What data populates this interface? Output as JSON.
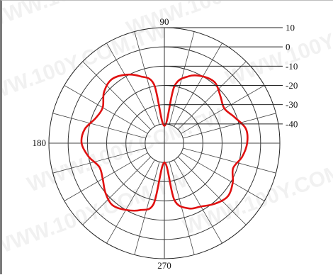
{
  "chart_data": {
    "type": "polar",
    "title": "",
    "angle_labels": [
      {
        "deg": 90,
        "text": "90"
      },
      {
        "deg": 180,
        "text": "180"
      },
      {
        "deg": 270,
        "text": "270"
      }
    ],
    "radial_scale": {
      "unit": "dB",
      "range": [
        -50,
        10
      ],
      "rings": [
        10,
        0,
        -10,
        -20,
        -30,
        -40
      ],
      "ring_labels": [
        "10",
        "0",
        "-10",
        "-20",
        "-30",
        "-40"
      ]
    },
    "angular_grid_step_deg": 15,
    "series": [
      {
        "color": "#e01010",
        "points": [
          {
            "angle": 90,
            "value": -41
          },
          {
            "angle": 80,
            "value": -20
          },
          {
            "angle": 70,
            "value": -13
          },
          {
            "angle": 60,
            "value": -10
          },
          {
            "angle": 50,
            "value": -9
          },
          {
            "angle": 40,
            "value": -12
          },
          {
            "angle": 30,
            "value": -14
          },
          {
            "angle": 20,
            "value": -11
          },
          {
            "angle": 10,
            "value": -7
          },
          {
            "angle": 0,
            "value": -7
          },
          {
            "angle": -10,
            "value": -9
          },
          {
            "angle": -20,
            "value": -12
          },
          {
            "angle": -30,
            "value": -9
          },
          {
            "angle": -40,
            "value": -7
          },
          {
            "angle": -50,
            "value": -9
          },
          {
            "angle": -60,
            "value": -12
          },
          {
            "angle": -70,
            "value": -14
          },
          {
            "angle": -80,
            "value": -20
          },
          {
            "angle": -90,
            "value": -40
          },
          {
            "angle": -100,
            "value": -18
          },
          {
            "angle": -110,
            "value": -13
          },
          {
            "angle": -120,
            "value": -10
          },
          {
            "angle": -130,
            "value": -8
          },
          {
            "angle": -140,
            "value": -10
          },
          {
            "angle": -150,
            "value": -13
          },
          {
            "angle": -160,
            "value": -14
          },
          {
            "angle": -170,
            "value": -10
          },
          {
            "angle": 180,
            "value": -7
          },
          {
            "angle": 170,
            "value": -8
          },
          {
            "angle": 160,
            "value": -12
          },
          {
            "angle": 150,
            "value": -13
          },
          {
            "angle": 140,
            "value": -9
          },
          {
            "angle": 130,
            "value": -7
          },
          {
            "angle": 120,
            "value": -9
          },
          {
            "angle": 110,
            "value": -13
          },
          {
            "angle": 100,
            "value": -19
          }
        ]
      }
    ]
  },
  "watermark": "WWW.100Y.COM.TW"
}
